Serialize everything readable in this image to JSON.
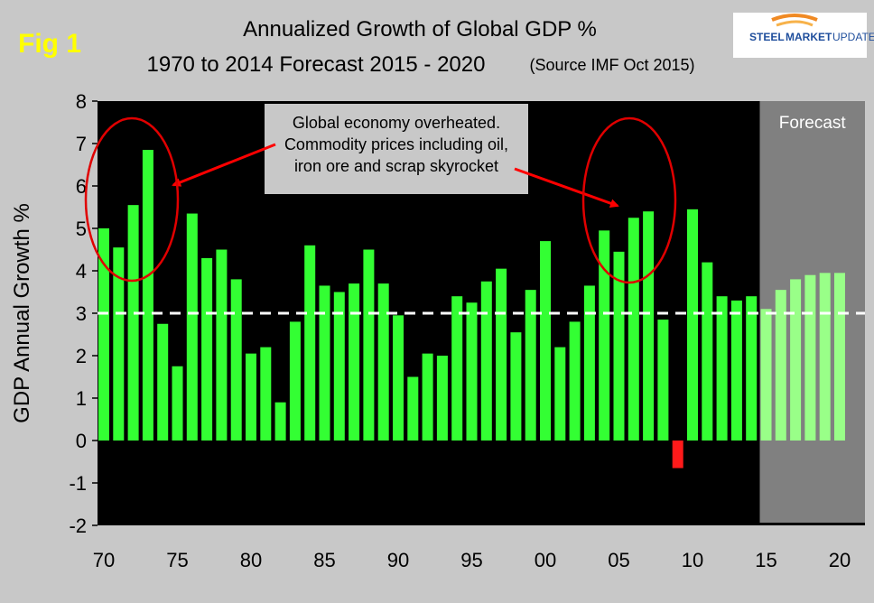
{
  "fig_label": "Fig 1",
  "logo": {
    "line1": "STEEL MARKET UPDATE",
    "word1": "STEEL",
    "word2": "MARKET",
    "word3": "UPDATE"
  },
  "chart_data": {
    "type": "bar",
    "title": "Annualized Growth of Global GDP %",
    "subtitle": "1970 to 2014 Forecast 2015 - 2020",
    "source": "(Source IMF Oct 2015)",
    "xlabel": "",
    "ylabel": "GDP Annual Growth %",
    "ylim": [
      -2,
      8
    ],
    "yticks": [
      "8",
      "7",
      "6",
      "5",
      "4",
      "3",
      "2",
      "1",
      "0",
      "-1",
      "-2"
    ],
    "ytick_values": [
      8,
      7,
      6,
      5,
      4,
      3,
      2,
      1,
      0,
      -1,
      -2
    ],
    "xticks": [
      {
        "year": 1970,
        "label": "70"
      },
      {
        "year": 1975,
        "label": "75"
      },
      {
        "year": 1980,
        "label": "80"
      },
      {
        "year": 1985,
        "label": "85"
      },
      {
        "year": 1990,
        "label": "90"
      },
      {
        "year": 1995,
        "label": "95"
      },
      {
        "year": 2000,
        "label": "00"
      },
      {
        "year": 2005,
        "label": "05"
      },
      {
        "year": 2010,
        "label": "10"
      },
      {
        "year": 2015,
        "label": "15"
      },
      {
        "year": 2020,
        "label": "20"
      }
    ],
    "reference_line": 3,
    "forecast_label": "Forecast",
    "forecast_start_year": 2015,
    "colors": {
      "actual": "#33ff33",
      "forecast": "#99ff88",
      "negative": "#ff1a1a",
      "plot_bg": "#000000",
      "forecast_bg": "#808080",
      "annotation_circle": "#e00000",
      "reference_line": "#ffffff",
      "fig_label": "#ffff00"
    },
    "annotation": {
      "lines": [
        "Global economy overheated.",
        "Commodity prices including oil,",
        "iron ore and scrap skyrocket"
      ],
      "circles_around_years": [
        [
          1970,
          1973
        ],
        [
          2004,
          2007
        ]
      ]
    },
    "series": [
      {
        "name": "Actual",
        "years": [
          1970,
          1971,
          1972,
          1973,
          1974,
          1975,
          1976,
          1977,
          1978,
          1979,
          1980,
          1981,
          1982,
          1983,
          1984,
          1985,
          1986,
          1987,
          1988,
          1989,
          1990,
          1991,
          1992,
          1993,
          1994,
          1995,
          1996,
          1997,
          1998,
          1999,
          2000,
          2001,
          2002,
          2003,
          2004,
          2005,
          2006,
          2007,
          2008,
          2009,
          2010,
          2011,
          2012,
          2013,
          2014
        ],
        "values": [
          5.0,
          4.55,
          5.55,
          6.85,
          2.75,
          1.75,
          5.35,
          4.3,
          4.5,
          3.8,
          2.05,
          2.2,
          0.9,
          2.8,
          4.6,
          3.65,
          3.5,
          3.7,
          4.5,
          3.7,
          2.95,
          1.5,
          2.05,
          2.0,
          3.4,
          3.25,
          3.75,
          4.05,
          2.55,
          3.55,
          4.7,
          2.2,
          2.8,
          3.65,
          4.95,
          4.45,
          5.25,
          5.4,
          2.85,
          -0.65,
          5.45,
          4.2,
          3.4,
          3.3,
          3.4
        ]
      },
      {
        "name": "Forecast",
        "years": [
          2015,
          2016,
          2017,
          2018,
          2019,
          2020
        ],
        "values": [
          3.1,
          3.55,
          3.8,
          3.9,
          3.95,
          3.95
        ]
      }
    ]
  }
}
